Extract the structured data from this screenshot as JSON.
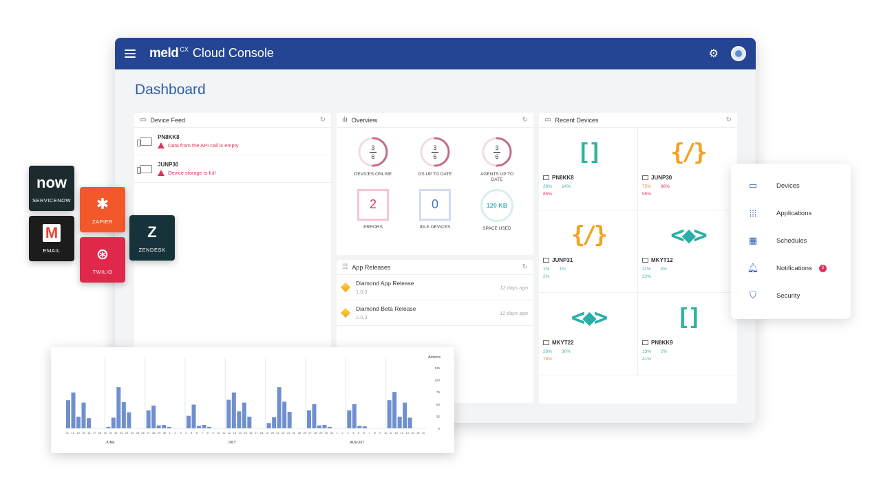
{
  "app": {
    "brand": "meld",
    "brand_sup": "CX",
    "title": "Cloud Console"
  },
  "page_title": "Dashboard",
  "device_feed": {
    "title": "Device Feed",
    "items": [
      {
        "name": "PN8KK8",
        "message": "Data from the API call is empty"
      },
      {
        "name": "JUNP30",
        "message": "Device storage is full"
      }
    ]
  },
  "overview": {
    "title": "Overview",
    "rings": [
      {
        "num": "3",
        "den": "6",
        "label": "DEVICES ONLINE",
        "fraction": 0.5
      },
      {
        "num": "3",
        "den": "6",
        "label": "OS UP TO DATE",
        "fraction": 0.5
      },
      {
        "num": "3",
        "den": "6",
        "label": "AGENTS UP TO DATE",
        "fraction": 0.5
      }
    ],
    "errors": {
      "value": "2",
      "label": "ERRORS"
    },
    "idle": {
      "value": "0",
      "label": "IDLE DEVICES"
    },
    "space": {
      "value": "120 KB",
      "label": "SPACE USED"
    }
  },
  "app_releases": {
    "title": "App Releases",
    "items": [
      {
        "name": "Diamond App Release",
        "version": "1.0.0",
        "time": "12 days ago"
      },
      {
        "name": "Diamond Beta Release",
        "version": "2.0.3",
        "time": "12 days ago"
      }
    ]
  },
  "recent_devices": {
    "title": "Recent Devices",
    "items": [
      {
        "name": "PN8KK8",
        "s1": "28%",
        "s2": "14%",
        "s3": "85%",
        "s3color": "pink"
      },
      {
        "name": "JUNP30",
        "s1": "75%",
        "s2": "98%",
        "s3": "95%",
        "s3color": "pink"
      },
      {
        "name": "JUNP31",
        "s1": "1%",
        "s2": "1%",
        "s3": "2%",
        "s3color": "teal"
      },
      {
        "name": "MKYT12",
        "s1": "11%",
        "s2": "3%",
        "s3": "22%",
        "s3color": "teal"
      },
      {
        "name": "MKYT22",
        "s1": "28%",
        "s2": "30%",
        "s3": "79%",
        "s3color": "orange"
      },
      {
        "name": "PN8KK9",
        "s1": "13%",
        "s2": "2%",
        "s3": "41%",
        "s3color": "teal"
      }
    ]
  },
  "integrations": {
    "servicenow": {
      "mark": "now",
      "label": "SERVICENOW"
    },
    "zapier": {
      "mark": "✱",
      "label": "ZAPIER"
    },
    "email": {
      "mark": "M",
      "label": "EMAIL"
    },
    "twilio": {
      "mark": "⊛",
      "label": "TWILIO"
    },
    "zendesk": {
      "mark": "Z",
      "label": "ZENDESK"
    }
  },
  "nav": {
    "items": [
      {
        "label": "Devices",
        "icon": "devices-icon"
      },
      {
        "label": "Applications",
        "icon": "applications-icon"
      },
      {
        "label": "Schedules",
        "icon": "calendar-icon"
      },
      {
        "label": "Notifications",
        "icon": "bell-icon",
        "badge": "3"
      },
      {
        "label": "Security",
        "icon": "shield-icon"
      }
    ]
  },
  "colors": {
    "accent": "#234593",
    "bar": "#6f8fce",
    "error": "#e0335c",
    "teal": "#3fb1b1"
  },
  "chart_data": {
    "type": "bar",
    "ylabel": "Actions",
    "yticks": [
      "0",
      "25",
      "50",
      "75",
      "100",
      "125"
    ],
    "ylim": [
      0,
      125
    ],
    "months": [
      "JUNE",
      "JULY",
      "AUGUST"
    ],
    "x": [
      "11",
      "13",
      "14",
      "15",
      "16",
      "17",
      "18",
      "19",
      "20",
      "21",
      "22",
      "23",
      "24",
      "25",
      "26",
      "27",
      "28",
      "29",
      "30",
      "1",
      "2",
      "3",
      "4",
      "5",
      "6",
      "7",
      "8",
      "9",
      "10",
      "11",
      "12",
      "13",
      "14",
      "15",
      "16",
      "17",
      "18",
      "19",
      "20",
      "21",
      "22",
      "23",
      "24",
      "25",
      "26",
      "27",
      "28",
      "29",
      "30",
      "31",
      "1",
      "2",
      "3",
      "4",
      "5",
      "6",
      "7",
      "8",
      "9",
      "10",
      "11",
      "12",
      "13",
      "14",
      "15",
      "16",
      "11"
    ],
    "groups": [
      [
        58,
        74,
        24,
        53,
        21
      ],
      [
        3,
        22,
        85,
        54,
        33
      ],
      [
        37,
        47,
        6,
        7,
        3
      ],
      [
        26,
        49,
        5,
        7,
        3
      ],
      [
        59,
        74,
        35,
        53,
        24
      ],
      [
        11,
        23,
        85,
        55,
        34
      ],
      [
        37,
        50,
        6,
        7,
        3
      ],
      [
        37,
        50,
        5,
        4,
        0
      ],
      [
        58,
        75,
        24,
        53,
        22
      ]
    ]
  }
}
